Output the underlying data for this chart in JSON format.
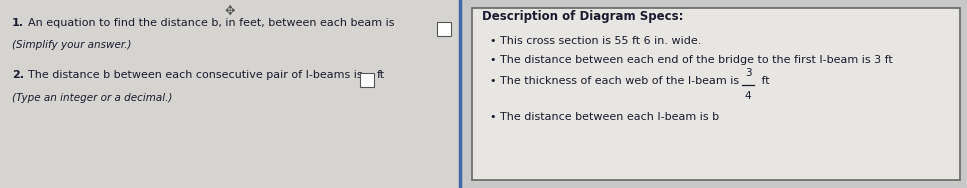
{
  "bg_color": "#c8c8c8",
  "left_bg": "#d6d4d0",
  "right_bg": "#e8e6e2",
  "right_border_color": "#666666",
  "divider_color": "#4466aa",
  "text_color": "#1a1a2e",
  "title_color": "#1a1a2e",
  "box_color": "#ffffff",
  "box_edge_color": "#555555",
  "move_icon": "✥",
  "q1_num": "1.",
  "q1_text": "An equation to find the distance b, in feet, between each beam is",
  "q1_sub": "(Simplify your answer.)",
  "q2_num": "2.",
  "q2_text": "The distance b between each consecutive pair of I-beams is",
  "q2_unit": "ft",
  "q2_sub": "(Type an integer or a decimal.)",
  "right_title": "Description of Diagram Specs:",
  "bullet1": "This cross section is 55 ft 6 in. wide.",
  "bullet2": "The distance between each end of the bridge to the first I-beam is 3 ft",
  "bullet3_pre": "The thickness of each web of the I-beam is ",
  "bullet3_frac_num": "3",
  "bullet3_frac_den": "4",
  "bullet3_post": "ft",
  "bullet4": "The distance between each I-beam is b",
  "fontsize_main": 8.0,
  "fontsize_sub": 7.5,
  "fontsize_title": 8.5
}
